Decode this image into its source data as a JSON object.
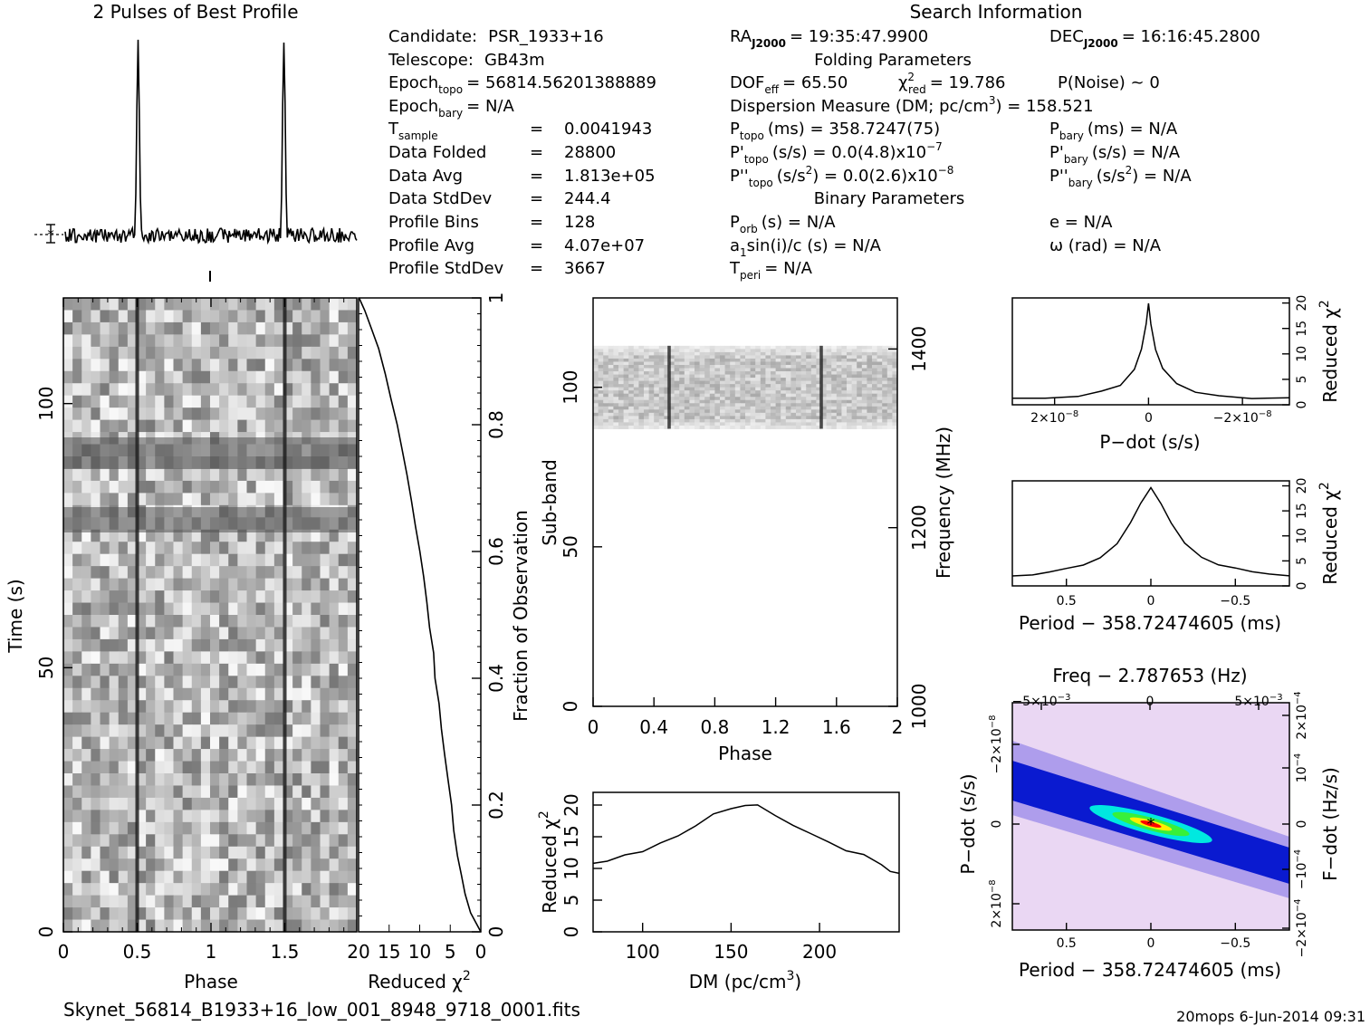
{
  "page": {
    "title_profile": "2 Pulses of Best Profile",
    "title_search": "Search Information",
    "filename": "Skynet_56814_B1933+16_low_001_8948_9718_0001.fits",
    "footer": "20mops   6-Jun-2014 09:31"
  },
  "info": {
    "candidate_label": "Candidate:",
    "candidate": "PSR_1933+16",
    "telescope_label": "Telescope:",
    "telescope": "GB43m",
    "epoch_topo_label": "Epoch",
    "epoch_topo_sub": "topo",
    "epoch_topo": "= 56814.56201388889",
    "epoch_bary_label": "Epoch",
    "epoch_bary_sub": "bary",
    "epoch_bary": "= N/A",
    "t_sample_label": "T",
    "t_sample_sub": "sample",
    "t_sample": "0.0041943",
    "data_folded_label": "Data Folded",
    "data_folded": "28800",
    "data_avg_label": "Data Avg",
    "data_avg": "1.813e+05",
    "data_stddev_label": "Data StdDev",
    "data_stddev": "244.4",
    "profile_bins_label": "Profile Bins",
    "profile_bins": "128",
    "profile_avg_label": "Profile Avg",
    "profile_avg": "4.07e+07",
    "profile_stddev_label": "Profile StdDev",
    "profile_stddev": "3667",
    "ra": "RA",
    "ra_sub": "J2000",
    "ra_val": "= 19:35:47.9900",
    "dec": "DEC",
    "dec_sub": "J2000",
    "dec_val": "= 16:16:45.2800",
    "folding_params": "Folding Parameters",
    "dof_label": "DOF",
    "dof_sub": "eff",
    "dof_val": "= 65.50",
    "chi_label": "χ",
    "chi_sup": "2",
    "chi_sub": "red",
    "chi_val": "= 19.786",
    "pnoise": "P(Noise) ~ 0",
    "dm_line_a": "Dispersion Measure (DM; pc/cm",
    "dm_line_sup": "3",
    "dm_line_b": ") = 158.521",
    "ptopo_label": "P",
    "ptopo_sub": "topo",
    "ptopo_val": "(ms) =  358.7247(75)",
    "pbary_label": "P",
    "pbary_sub": "bary",
    "pbary_val": "(ms) = N/A",
    "pdtopo_label": "P'",
    "pdtopo_sub": "topo",
    "pdtopo_val": "(s/s) = 0.0(4.8)x10",
    "pdtopo_exp": "−7",
    "pdbary_label": "P'",
    "pdbary_sub": "bary",
    "pdbary_val": "(s/s) = N/A",
    "pddtopo_label": "P''",
    "pddtopo_sub": "topo",
    "pddtopo_val_a": "(s/s",
    "pddtopo_sup": "2",
    "pddtopo_val_b": ") = 0.0(2.6)x10",
    "pddtopo_exp": "−8",
    "pddbary_label": "P''",
    "pddbary_sub": "bary",
    "pddbary_val_a": "(s/s",
    "pddbary_sup": "2",
    "pddbary_val_b": ") = N/A",
    "binary_params": "Binary Parameters",
    "porb_label": "P",
    "porb_sub": "orb",
    "porb_val": "(s) = N/A",
    "e_line": "e = N/A",
    "a1_line": "a",
    "a1_sub": "1",
    "a1_rest": "sin(i)/c (s) = N/A",
    "omega_line": "ω (rad) = N/A",
    "tperi_label": "T",
    "tperi_sub": "peri",
    "tperi_val": "= N/A",
    "eq": "="
  },
  "colors": {
    "ink": "#000000",
    "background": "#ffffff",
    "accent_peak": "#ff0000",
    "cold_blue": "#0000cc",
    "mid_cyan": "#00ffff",
    "mid_green": "#00ff00",
    "warm_yellow": "#ffff00"
  },
  "chart_data": [
    {
      "id": "profile",
      "type": "line",
      "title": "2 Pulses of Best Profile",
      "xlim": [
        0,
        2
      ],
      "peaks_phase": [
        0.5,
        1.5
      ],
      "bins": 128,
      "pulses": 2
    },
    {
      "id": "time-phase",
      "type": "heatmap",
      "xlabel": "Phase",
      "ylabel": "Time (s)",
      "xlim": [
        0,
        2
      ],
      "ylim": [
        0,
        120
      ],
      "xticks": [
        "0",
        "0.5",
        "1",
        "1.5"
      ],
      "yticks": [
        "0",
        "50",
        "100"
      ],
      "pulse_phases": [
        0.5,
        1.5
      ]
    },
    {
      "id": "chi-vs-time",
      "type": "line",
      "xlabel": "Reduced χ",
      "xlabel_sup": "2",
      "ylabel": "Fraction of Observation",
      "xlim": [
        20,
        0
      ],
      "ylim": [
        0,
        1
      ],
      "xticks": [
        "20",
        "15",
        "10",
        "5",
        "0"
      ],
      "yticks": [
        "0",
        "0.2",
        "0.4",
        "0.6",
        "0.8",
        "1"
      ],
      "points": [
        [
          0,
          0.0
        ],
        [
          1.6,
          0.03
        ],
        [
          2.6,
          0.06
        ],
        [
          3.3,
          0.09
        ],
        [
          3.9,
          0.12
        ],
        [
          4.4,
          0.16
        ],
        [
          4.9,
          0.2
        ],
        [
          5.4,
          0.24
        ],
        [
          5.9,
          0.28
        ],
        [
          6.3,
          0.32
        ],
        [
          6.9,
          0.36
        ],
        [
          7.4,
          0.4
        ],
        [
          7.8,
          0.44
        ],
        [
          8.4,
          0.48
        ],
        [
          8.9,
          0.52
        ],
        [
          9.4,
          0.56
        ],
        [
          10.1,
          0.6
        ],
        [
          10.6,
          0.64
        ],
        [
          11.3,
          0.68
        ],
        [
          12.0,
          0.72
        ],
        [
          12.8,
          0.76
        ],
        [
          13.7,
          0.8
        ],
        [
          14.6,
          0.84
        ],
        [
          15.6,
          0.88
        ],
        [
          16.7,
          0.92
        ],
        [
          17.8,
          0.95
        ],
        [
          19.0,
          0.98
        ],
        [
          20.0,
          1.0
        ]
      ]
    },
    {
      "id": "subband-phase",
      "type": "heatmap",
      "xlabel": "Phase",
      "ylabel": "Sub-band",
      "ylabel_right": "Frequency (MHz)",
      "xlim": [
        0,
        2
      ],
      "ylim": [
        0,
        128
      ],
      "xticks": [
        "0",
        "0.4",
        "0.8",
        "1.2",
        "1.6",
        "2"
      ],
      "yticks": [
        "0",
        "50",
        "100"
      ],
      "yticks_right": [
        "1000",
        "1200",
        "1400"
      ],
      "occupied_subbands": [
        87,
        113
      ],
      "pulse_phases": [
        0.5,
        1.5
      ]
    },
    {
      "id": "dm-curve",
      "type": "line",
      "xlabel": "DM (pc/cm",
      "xlabel_sup": "3",
      "xlabel_end": ")",
      "ylabel": "Reduced χ",
      "ylabel_sup": "2",
      "xlim": [
        72,
        245
      ],
      "ylim": [
        0,
        22
      ],
      "xticks": [
        "100",
        "150",
        "200"
      ],
      "yticks": [
        "0",
        "5",
        "10",
        "15",
        "20"
      ],
      "points": [
        [
          72,
          10.8
        ],
        [
          80,
          11.3
        ],
        [
          90,
          12.0
        ],
        [
          100,
          12.8
        ],
        [
          110,
          13.8
        ],
        [
          120,
          15.0
        ],
        [
          130,
          16.8
        ],
        [
          140,
          18.6
        ],
        [
          150,
          19.6
        ],
        [
          158,
          20.2
        ],
        [
          165,
          19.8
        ],
        [
          175,
          18.6
        ],
        [
          185,
          17.0
        ],
        [
          195,
          15.5
        ],
        [
          205,
          14.1
        ],
        [
          215,
          13.0
        ],
        [
          225,
          12.0
        ],
        [
          235,
          10.6
        ],
        [
          240,
          9.6
        ],
        [
          245,
          9.0
        ]
      ]
    },
    {
      "id": "pdot-curve",
      "type": "line",
      "xlabel": "P−dot (s/s)",
      "ylabel": "Reduced χ",
      "ylabel_sup": "2",
      "xlim": [
        2.9e-08,
        -3e-08
      ],
      "ylim": [
        0,
        21
      ],
      "xticks": [
        "2×10",
        "0",
        "−2×10"
      ],
      "xtick_exp": "−8",
      "yticks": [
        "0",
        "5",
        "10",
        "15",
        "20"
      ],
      "points": [
        [
          2.9e-08,
          1.3
        ],
        [
          2.2e-08,
          1.4
        ],
        [
          1.5e-08,
          1.8
        ],
        [
          1e-08,
          2.5
        ],
        [
          6e-09,
          4.0
        ],
        [
          3e-09,
          7.0
        ],
        [
          1.5e-09,
          11.0
        ],
        [
          5e-10,
          16.0
        ],
        [
          0,
          19.8
        ],
        [
          -5e-10,
          16.0
        ],
        [
          -1.5e-09,
          11.0
        ],
        [
          -3e-09,
          7.0
        ],
        [
          -6e-09,
          4.0
        ],
        [
          -1e-08,
          2.5
        ],
        [
          -1.5e-08,
          1.8
        ],
        [
          -2.2e-08,
          1.4
        ],
        [
          -3e-08,
          1.3
        ]
      ]
    },
    {
      "id": "period-curve",
      "type": "line",
      "xlabel": "Period − 358.72474605 (ms)",
      "ylabel": "Reduced χ",
      "ylabel_sup": "2",
      "xlim": [
        0.82,
        -0.82
      ],
      "ylim": [
        0,
        21
      ],
      "xticks": [
        "0.5",
        "0",
        "−0.5"
      ],
      "yticks": [
        "0",
        "5",
        "10",
        "15",
        "20"
      ],
      "points": [
        [
          0.82,
          2.0
        ],
        [
          0.7,
          2.3
        ],
        [
          0.6,
          2.8
        ],
        [
          0.5,
          3.4
        ],
        [
          0.4,
          4.3
        ],
        [
          0.3,
          5.8
        ],
        [
          0.2,
          8.5
        ],
        [
          0.12,
          12.5
        ],
        [
          0.06,
          16.5
        ],
        [
          0,
          19.8
        ],
        [
          -0.06,
          16.5
        ],
        [
          -0.12,
          12.5
        ],
        [
          -0.2,
          8.5
        ],
        [
          -0.3,
          5.8
        ],
        [
          -0.4,
          4.3
        ],
        [
          -0.5,
          3.4
        ],
        [
          -0.6,
          2.8
        ],
        [
          -0.7,
          2.3
        ],
        [
          -0.82,
          2.0
        ]
      ]
    },
    {
      "id": "ppdot-plane",
      "type": "heatmap",
      "title": "Freq − 2.787653 (Hz)",
      "xlabel": "Period − 358.72474605 (ms)",
      "ylabel": "P−dot (s/s)",
      "ylabel_right": "F−dot (Hz/s)",
      "xlim": [
        0.82,
        -0.82
      ],
      "ylim": [
        3e-08,
        -3e-08
      ],
      "xticks": [
        "0.5",
        "0",
        "−0.5"
      ],
      "top_ticks": [
        "−5×10",
        "0",
        "5×10"
      ],
      "top_exp": "−3",
      "left_ticks": [
        "−2×10",
        "0",
        "2×10"
      ],
      "left_exp": "−8",
      "right_ticks": [
        "2×10",
        "10",
        "0",
        "−10",
        "−2×10"
      ],
      "right_exp": "−4",
      "best": [
        0,
        0
      ]
    }
  ]
}
